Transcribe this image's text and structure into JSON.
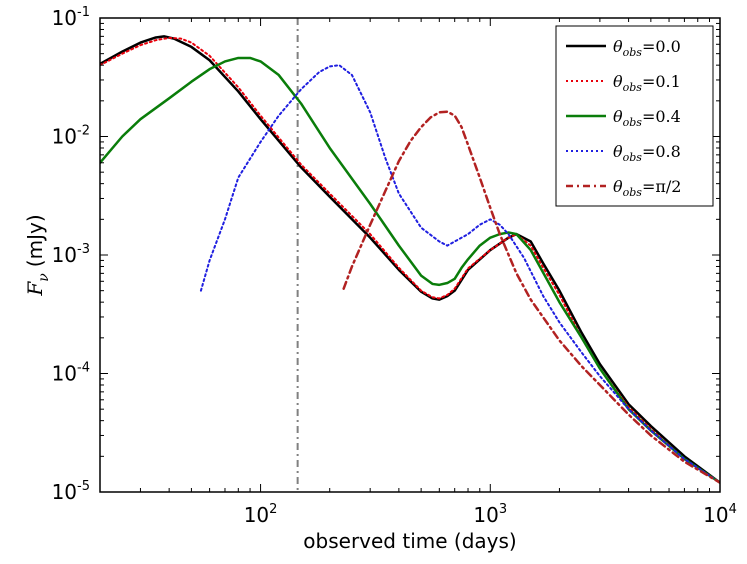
{
  "chart_data": {
    "type": "line",
    "xscale": "log",
    "yscale": "log",
    "xlim": [
      20,
      10000
    ],
    "ylim": [
      1e-05,
      0.1
    ],
    "xlabel": "observed time (days)",
    "ylabel": {
      "symbol": "F",
      "subscript": "ν",
      "unit": "(mJy)"
    },
    "xticks": [
      {
        "value": 100,
        "base": "10",
        "exp": "2"
      },
      {
        "value": 1000,
        "base": "10",
        "exp": "3"
      },
      {
        "value": 10000,
        "base": "10",
        "exp": "4"
      }
    ],
    "yticks": [
      {
        "value": 1e-05,
        "base": "10",
        "exp": "-5"
      },
      {
        "value": 0.0001,
        "base": "10",
        "exp": "-4"
      },
      {
        "value": 0.001,
        "base": "10",
        "exp": "-3"
      },
      {
        "value": 0.01,
        "base": "10",
        "exp": "-2"
      },
      {
        "value": 0.1,
        "base": "10",
        "exp": "-1"
      }
    ],
    "vline": {
      "x": 145,
      "color": "#808080",
      "style": "dashdot"
    },
    "legend_position": "top-right",
    "series": [
      {
        "name": "θobs=0.0",
        "label": {
          "theta": "θ",
          "sub": "obs",
          "eq": "=",
          "val": "0.0"
        },
        "color": "#000000",
        "style": "solid",
        "width": 2.5,
        "x": [
          20,
          25,
          30,
          35,
          38,
          42,
          50,
          60,
          80,
          100,
          150,
          200,
          300,
          400,
          500,
          560,
          600,
          650,
          700,
          800,
          1000,
          1200,
          1300,
          1500,
          1700,
          2000,
          2500,
          3000,
          4000,
          5000,
          7000,
          10000
        ],
        "y": [
          0.041,
          0.052,
          0.062,
          0.0685,
          0.07,
          0.067,
          0.057,
          0.044,
          0.024,
          0.014,
          0.0055,
          0.0031,
          0.0014,
          0.00075,
          0.00049,
          0.00043,
          0.00042,
          0.00045,
          0.0005,
          0.00075,
          0.0011,
          0.0014,
          0.0015,
          0.0013,
          0.00085,
          0.0005,
          0.00022,
          0.00012,
          5.5e-05,
          3.6e-05,
          2e-05,
          1.2e-05
        ]
      },
      {
        "name": "θobs=0.1",
        "label": {
          "theta": "θ",
          "sub": "obs",
          "eq": "=",
          "val": "0.1"
        },
        "color": "#e8000b",
        "style": "dotted",
        "width": 2,
        "x": [
          20,
          25,
          30,
          35,
          40,
          45,
          50,
          60,
          80,
          100,
          150,
          200,
          300,
          400,
          500,
          560,
          600,
          650,
          700,
          800,
          1000,
          1200,
          1300,
          1500,
          1700,
          2000,
          2500,
          3000,
          4000,
          5000,
          7000,
          10000
        ],
        "y": [
          0.04,
          0.05,
          0.059,
          0.065,
          0.068,
          0.067,
          0.062,
          0.048,
          0.026,
          0.015,
          0.0058,
          0.0033,
          0.0015,
          0.00078,
          0.0005,
          0.00044,
          0.00043,
          0.00046,
          0.00052,
          0.00077,
          0.0011,
          0.0014,
          0.0015,
          0.0012,
          0.00078,
          0.00046,
          0.0002,
          0.00011,
          5.2e-05,
          3.4e-05,
          1.9e-05,
          1.2e-05
        ]
      },
      {
        "name": "θobs=0.4",
        "label": {
          "theta": "θ",
          "sub": "obs",
          "eq": "=",
          "val": "0.4"
        },
        "color": "#0a7d0a",
        "style": "solid",
        "width": 2.5,
        "x": [
          20,
          25,
          30,
          40,
          50,
          60,
          70,
          80,
          90,
          100,
          120,
          150,
          200,
          300,
          400,
          500,
          560,
          600,
          650,
          700,
          750,
          800,
          900,
          1000,
          1100,
          1200,
          1300,
          1500,
          2000,
          2500,
          3000,
          4000,
          5000,
          7000,
          10000
        ],
        "y": [
          0.006,
          0.01,
          0.014,
          0.021,
          0.029,
          0.037,
          0.043,
          0.046,
          0.046,
          0.043,
          0.033,
          0.019,
          0.008,
          0.0027,
          0.0012,
          0.00067,
          0.00057,
          0.00056,
          0.00058,
          0.00063,
          0.00078,
          0.00092,
          0.0012,
          0.0014,
          0.0015,
          0.00155,
          0.0015,
          0.0011,
          0.0004,
          0.0002,
          0.00011,
          5e-05,
          3.3e-05,
          1.9e-05,
          1.2e-05
        ]
      },
      {
        "name": "θobs=0.8",
        "label": {
          "theta": "θ",
          "sub": "obs",
          "eq": "=",
          "val": "0.8"
        },
        "color": "#1f1fe0",
        "style": "dotted",
        "width": 2,
        "x": [
          55,
          60,
          70,
          80,
          100,
          120,
          150,
          180,
          200,
          220,
          250,
          300,
          350,
          400,
          500,
          600,
          650,
          700,
          800,
          900,
          1000,
          1100,
          1200,
          1400,
          1700,
          2000,
          2500,
          3000,
          4000,
          5000,
          7000,
          10000
        ],
        "y": [
          0.0005,
          0.0009,
          0.002,
          0.0045,
          0.009,
          0.015,
          0.025,
          0.035,
          0.039,
          0.04,
          0.033,
          0.016,
          0.0065,
          0.0033,
          0.0017,
          0.0013,
          0.0012,
          0.0013,
          0.0015,
          0.0018,
          0.002,
          0.0018,
          0.0015,
          0.00095,
          0.00045,
          0.00027,
          0.00015,
          9.5e-05,
          5e-05,
          3.3e-05,
          1.9e-05,
          1.2e-05
        ]
      },
      {
        "name": "θobs=π/2",
        "label": {
          "theta": "θ",
          "sub": "obs",
          "eq": "=",
          "val": "π/2"
        },
        "color": "#b22222",
        "style": "dashdot",
        "width": 2.5,
        "x": [
          230,
          250,
          300,
          350,
          400,
          450,
          500,
          550,
          600,
          650,
          700,
          750,
          800,
          900,
          1000,
          1100,
          1300,
          1500,
          2000,
          2500,
          3000,
          4000,
          5000,
          7000,
          10000
        ],
        "y": [
          0.00052,
          0.0008,
          0.0018,
          0.0035,
          0.0062,
          0.0092,
          0.012,
          0.0145,
          0.016,
          0.0162,
          0.015,
          0.012,
          0.0085,
          0.0045,
          0.0025,
          0.0015,
          0.0007,
          0.00042,
          0.00019,
          0.000115,
          8e-05,
          4.5e-05,
          3e-05,
          1.8e-05,
          1.2e-05
        ]
      }
    ]
  }
}
